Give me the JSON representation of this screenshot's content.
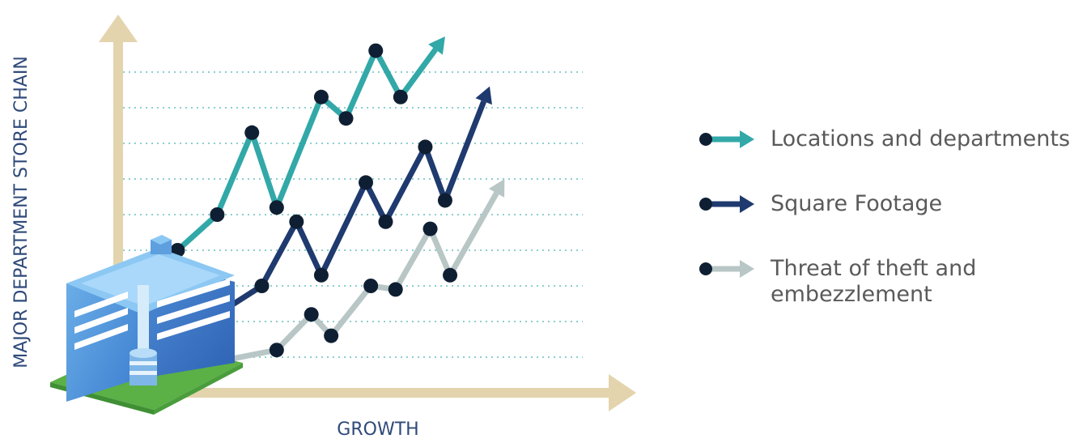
{
  "chart_data": {
    "type": "line",
    "xlabel": "GROWTH",
    "ylabel": "MAJOR DEPARTMENT STORE CHAIN",
    "xlim": [
      0,
      10
    ],
    "ylim": [
      0,
      10
    ],
    "grid": true,
    "legend_position": "right",
    "series": [
      {
        "name": "Locations and departments",
        "color": "#32a8a8",
        "points": [
          [
            1.2,
            4.0
          ],
          [
            2.0,
            5.0
          ],
          [
            2.7,
            7.3
          ],
          [
            3.2,
            5.2
          ],
          [
            4.1,
            8.3
          ],
          [
            4.6,
            7.7
          ],
          [
            5.2,
            9.6
          ],
          [
            5.7,
            8.3
          ]
        ],
        "arrow_to": [
          6.6,
          10.0
        ]
      },
      {
        "name": "Square Footage",
        "color": "#1f3a6e",
        "points": [
          [
            2.0,
            2.2
          ],
          [
            2.9,
            3.0
          ],
          [
            3.6,
            4.8
          ],
          [
            4.1,
            3.3
          ],
          [
            5.0,
            5.9
          ],
          [
            5.4,
            4.8
          ],
          [
            6.2,
            6.9
          ],
          [
            6.6,
            5.4
          ]
        ],
        "arrow_to": [
          7.5,
          8.6
        ]
      },
      {
        "name": "Threat of theft and embezzlement",
        "color": "#b8c6c6",
        "points": [
          [
            2.1,
            0.9
          ],
          [
            3.2,
            1.2
          ],
          [
            3.9,
            2.2
          ],
          [
            4.3,
            1.6
          ],
          [
            5.1,
            3.0
          ],
          [
            5.6,
            2.9
          ],
          [
            6.3,
            4.6
          ],
          [
            6.7,
            3.3
          ]
        ],
        "arrow_to": [
          7.8,
          6.0
        ]
      }
    ]
  },
  "colors": {
    "axis": "#e3d4ad",
    "grid": "#8ccfcf",
    "point": "#0f1f33",
    "label": "#2f4a7a"
  },
  "icons": [
    "office-building-icon"
  ]
}
